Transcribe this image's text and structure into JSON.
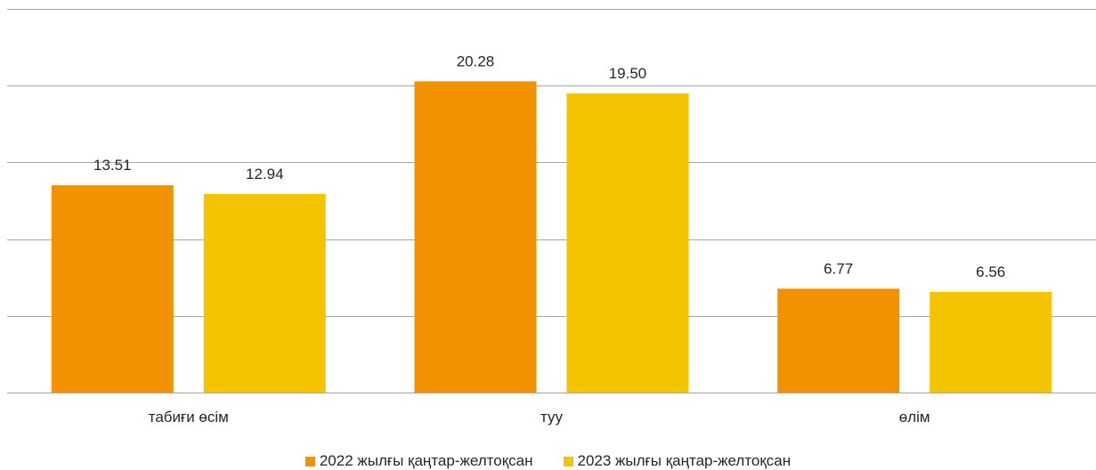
{
  "chart_data": {
    "type": "bar",
    "categories": [
      "табиғи өсім",
      "туу",
      "өлім"
    ],
    "series": [
      {
        "name": "2022 жылғы қаңтар-желтоқсан",
        "values": [
          13.51,
          20.28,
          6.77
        ],
        "color": "#F39200"
      },
      {
        "name": "2023 жылғы қаңтар-желтоқсан",
        "values": [
          12.94,
          19.5,
          6.56
        ],
        "color": "#F5C400"
      }
    ],
    "ylim": [
      0,
      25
    ],
    "y_gridlines": [
      0,
      5,
      10,
      15,
      20,
      25
    ],
    "y_tick_labels_shown": false,
    "legend_position": "bottom",
    "grid": true,
    "gridline_color": "#A6A6A6"
  }
}
